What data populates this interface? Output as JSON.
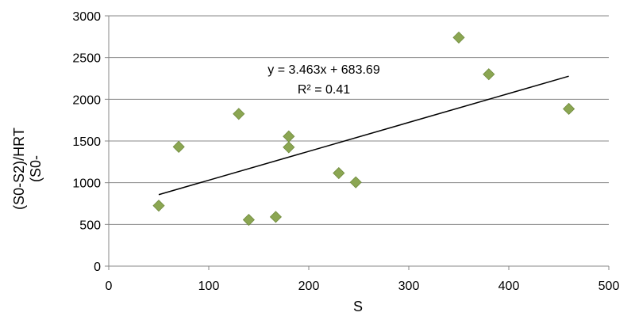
{
  "chart_data": {
    "type": "scatter",
    "xlabel": "S",
    "ylabel_lines": [
      "(S0-S2)/HRT",
      "(S0-"
    ],
    "xlim": [
      0,
      500
    ],
    "ylim": [
      0,
      3000
    ],
    "x_ticks": [
      0,
      100,
      200,
      300,
      400,
      500
    ],
    "y_ticks": [
      0,
      500,
      1000,
      1500,
      2000,
      2500,
      3000
    ],
    "grid": "horizontal",
    "marker": "diamond",
    "colors": {
      "marker": "#8BA652",
      "marker_stroke": "#6f8a3d",
      "trendline": "#000000",
      "gridline": "#878787",
      "axis": "#878787"
    },
    "points": [
      {
        "x": 50,
        "y": 725
      },
      {
        "x": 70,
        "y": 1430
      },
      {
        "x": 130,
        "y": 1825
      },
      {
        "x": 140,
        "y": 555
      },
      {
        "x": 167,
        "y": 590
      },
      {
        "x": 180,
        "y": 1555
      },
      {
        "x": 180,
        "y": 1425
      },
      {
        "x": 230,
        "y": 1115
      },
      {
        "x": 247,
        "y": 1005
      },
      {
        "x": 350,
        "y": 2740
      },
      {
        "x": 380,
        "y": 2300
      },
      {
        "x": 460,
        "y": 1885
      }
    ],
    "trendline": {
      "slope": 3.463,
      "intercept": 683.69,
      "x_range": [
        50,
        460
      ]
    },
    "annotations": {
      "equation": "y = 3.463x + 683.69",
      "r_squared": "R² = 0.41"
    }
  }
}
